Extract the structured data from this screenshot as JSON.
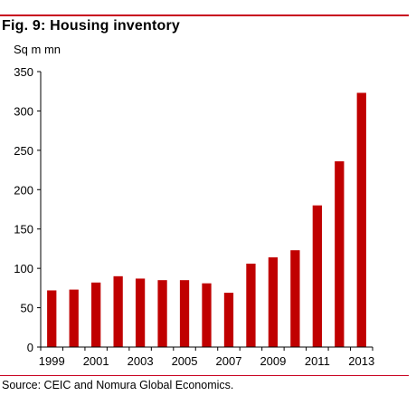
{
  "figure": {
    "title": "Fig. 9: Housing inventory",
    "source": "Source: CEIC and Nomura Global Economics."
  },
  "colors": {
    "accent": "#c8001e",
    "bar": "#c00000"
  },
  "chart_data": {
    "type": "bar",
    "ylabel": "Sq m mn",
    "xlabel": "",
    "ylim": [
      0,
      350
    ],
    "yticks": [
      0,
      50,
      100,
      150,
      200,
      250,
      300,
      350
    ],
    "categories": [
      "1999",
      "2000",
      "2001",
      "2002",
      "2003",
      "2004",
      "2005",
      "2006",
      "2007",
      "2008",
      "2009",
      "2010",
      "2011",
      "2012",
      "2013"
    ],
    "xtick_labels": [
      "1999",
      "",
      "2001",
      "",
      "2003",
      "",
      "2005",
      "",
      "2007",
      "",
      "2009",
      "",
      "2011",
      "",
      "2013"
    ],
    "values": [
      72,
      73,
      82,
      90,
      87,
      85,
      85,
      81,
      69,
      106,
      114,
      123,
      180,
      236,
      323
    ],
    "grid": false,
    "legend": "none"
  }
}
